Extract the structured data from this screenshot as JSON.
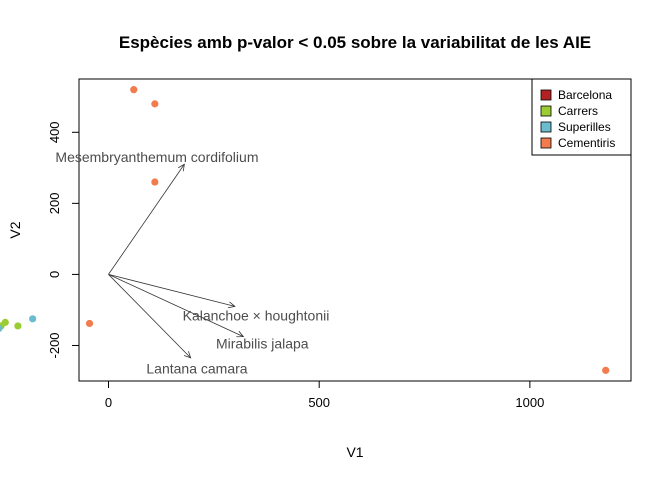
{
  "chart_data": {
    "type": "scatter",
    "title": "Espècies amb p-valor < 0.05 sobre la variabilitat de les AIE",
    "xlabel": "V1",
    "ylabel": "V2",
    "xlim": [
      -70,
      1240
    ],
    "ylim": [
      -300,
      550
    ],
    "xticks": [
      0,
      500,
      1000
    ],
    "yticks": [
      -200,
      0,
      200,
      400
    ],
    "xtick_labels": [
      "0",
      "500",
      "1000"
    ],
    "ytick_labels": [
      "-200",
      "0",
      "200",
      "400"
    ],
    "legend_position": "top-right",
    "grid": false,
    "series": [
      {
        "name": "Barcelona",
        "color": "#b22222",
        "points": []
      },
      {
        "name": "Carrers",
        "color": "#9acd32",
        "points": [
          [
            -245,
            -135
          ],
          [
            -215,
            -145
          ],
          [
            -255,
            -145
          ]
        ]
      },
      {
        "name": "Superilles",
        "color": "#6bbccf",
        "points": [
          [
            -180,
            -125
          ],
          [
            -260,
            -152
          ]
        ]
      },
      {
        "name": "Cementiris",
        "color": "#f27c4e",
        "points": [
          [
            60,
            520
          ],
          [
            110,
            480
          ],
          [
            110,
            260
          ],
          [
            -45,
            -138
          ],
          [
            1180,
            -270
          ]
        ]
      }
    ],
    "arrows": [
      {
        "label": "Mesembryanthemum cordifolium",
        "x": 180,
        "y": 310,
        "label_x": 115,
        "label_y": 330
      },
      {
        "label": "Kalanchoe × houghtonii",
        "x": 300,
        "y": -90,
        "label_x": 350,
        "label_y": -115
      },
      {
        "label": "Mirabilis jalapa",
        "x": 320,
        "y": -175,
        "label_x": 365,
        "label_y": -195
      },
      {
        "label": "Lantana camara",
        "x": 195,
        "y": -235,
        "label_x": 210,
        "label_y": -265
      }
    ]
  }
}
